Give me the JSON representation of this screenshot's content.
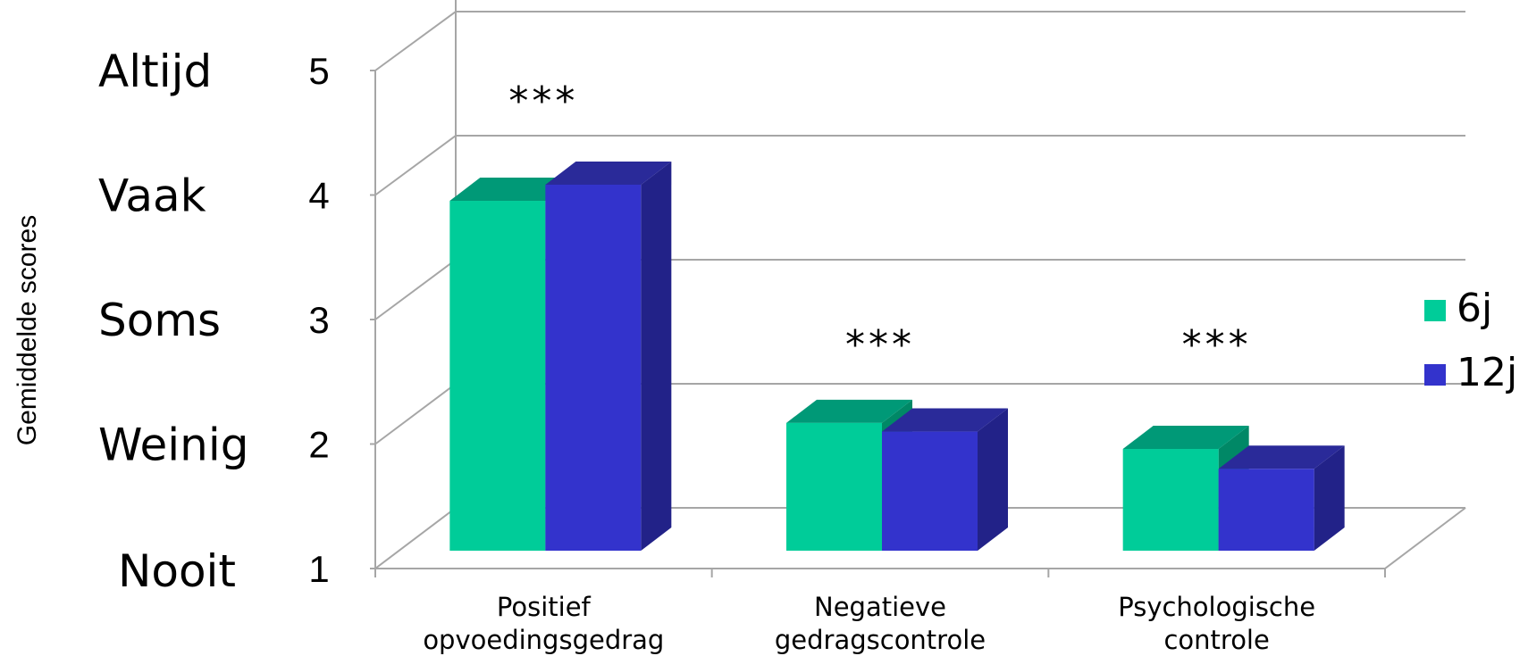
{
  "chart_data": {
    "type": "bar",
    "ylabel": "Gemiddelde scores",
    "ylim": [
      1,
      5
    ],
    "y_ticks": [
      1,
      2,
      3,
      4,
      5
    ],
    "y_frequency_labels": [
      "Nooit",
      "Weinig",
      "Soms",
      "Vaak",
      "Altijd"
    ],
    "categories": [
      [
        "Positief",
        "opvoedingsgedrag"
      ],
      [
        "Negatieve",
        "gedragscontrole"
      ],
      [
        "Psychologische",
        "controle"
      ]
    ],
    "significance": [
      "***",
      "***",
      "***"
    ],
    "series": [
      {
        "name": "6j",
        "values": [
          3.82,
          2.03,
          1.82
        ]
      },
      {
        "name": "12j",
        "values": [
          3.95,
          1.96,
          1.66
        ]
      }
    ],
    "legend_position": "right",
    "grid": true,
    "three_d": true,
    "colors": {
      "6j": {
        "front": "#00cc99",
        "top": "#009977",
        "side": "#008866"
      },
      "12j": {
        "front": "#3333cc",
        "top": "#2a2a99",
        "side": "#222288"
      },
      "grid": "#a6a6a6"
    }
  }
}
